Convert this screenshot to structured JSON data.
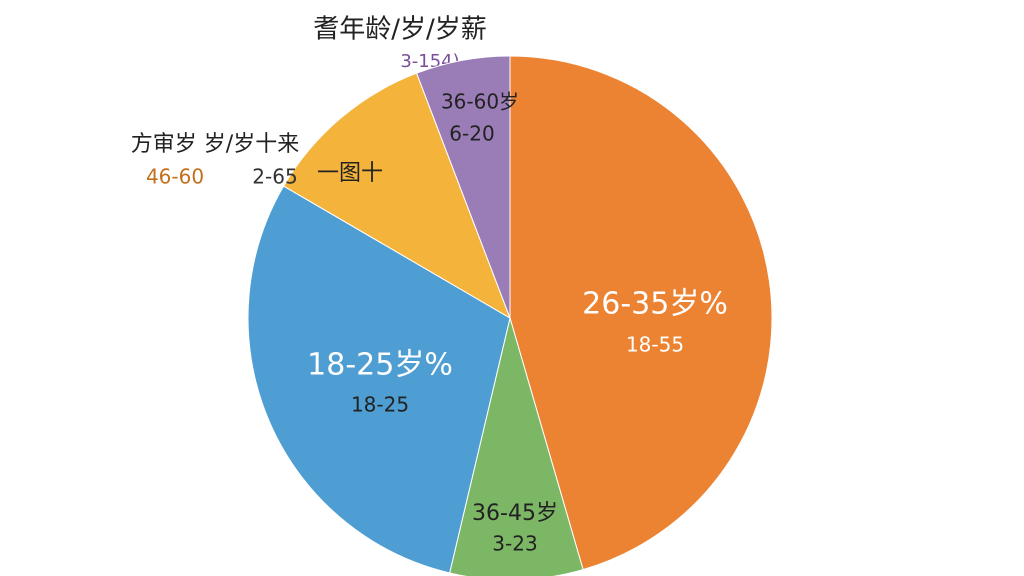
{
  "chart_data": {
    "type": "pie",
    "title": "耆年龄/岁/岁薪",
    "subtitle": "3-154)",
    "annotations": [
      "方审岁 岁/岁十来",
      "一图十"
    ],
    "categories": [
      "26-35岁%",
      "36-45岁",
      "18-25岁%",
      "46-60",
      "36-60岁"
    ],
    "sublabels": [
      "18-55",
      "3-23",
      "18-25",
      "2-65",
      "6-20"
    ],
    "values": [
      45.5,
      8.2,
      29.7,
      10.8,
      5.8
    ],
    "colors": [
      "#ec8333",
      "#7cb765",
      "#4e9ed3",
      "#f4b43b",
      "#9a7cb7"
    ]
  }
}
